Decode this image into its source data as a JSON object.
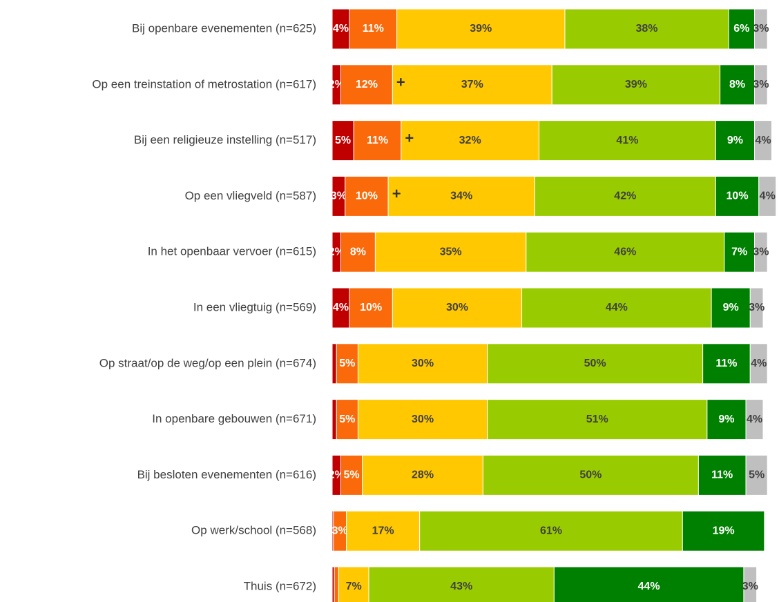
{
  "chart_data": {
    "type": "stacked-barh",
    "categories": [
      "Bij openbare evenementen (n=625)",
      "Op een treinstation of metrostation (n=617)",
      "Bij een religieuze instelling (n=517)",
      "Op een vliegveld (n=587)",
      "In het openbaar vervoer (n=615)",
      "In een vliegtuig (n=569)",
      "Op straat/op de weg/op een plein (n=674)",
      "In openbare gebouwen (n=671)",
      "Bij besloten evenementen (n=616)",
      "Op werk/school (n=568)",
      "Thuis (n=672)"
    ],
    "xlim": [
      0,
      100
    ],
    "series": [
      {
        "color": "#c00000",
        "label_color": "#ffffff",
        "values": [
          4,
          2,
          5,
          3,
          2,
          4,
          1,
          1,
          2,
          0.3,
          0.5
        ],
        "value_labels": [
          "4%",
          "2%",
          "5%",
          "3%",
          "2%",
          "4%",
          null,
          null,
          "2%",
          null,
          null
        ]
      },
      {
        "color": "#fa6a0a",
        "label_color": "#ffffff",
        "values": [
          11,
          12,
          11,
          10,
          8,
          10,
          5,
          5,
          5,
          3,
          1
        ],
        "value_labels": [
          "11%",
          "12%",
          "11%",
          "10%",
          "8%",
          "10%",
          "5%",
          "5%",
          "5%",
          "3%",
          null
        ]
      },
      {
        "color": "#ffc800",
        "label_color": "#404040",
        "values": [
          39,
          37,
          32,
          34,
          35,
          30,
          30,
          30,
          28,
          17,
          7
        ],
        "value_labels": [
          "39%",
          "37%",
          "32%",
          "34%",
          "35%",
          "30%",
          "30%",
          "30%",
          "28%",
          "17%",
          "7%"
        ]
      },
      {
        "color": "#99cc00",
        "label_color": "#404040",
        "values": [
          38,
          39,
          41,
          42,
          46,
          44,
          50,
          51,
          50,
          61,
          43
        ],
        "value_labels": [
          "38%",
          "39%",
          "41%",
          "42%",
          "46%",
          "44%",
          "50%",
          "51%",
          "50%",
          "61%",
          "43%"
        ]
      },
      {
        "color": "#008000",
        "label_color": "#ffffff",
        "values": [
          6,
          8,
          9,
          10,
          7,
          9,
          11,
          9,
          11,
          19,
          44
        ],
        "value_labels": [
          "6%",
          "8%",
          "9%",
          "10%",
          "7%",
          "9%",
          "11%",
          "9%",
          "11%",
          "19%",
          "44%"
        ]
      },
      {
        "color": "#bfbfbf",
        "label_color": "#404040",
        "values": [
          3,
          3,
          4,
          4,
          3,
          3,
          4,
          4,
          5,
          0,
          3
        ],
        "value_labels": [
          "3%",
          "3%",
          "4%",
          "4%",
          "3%",
          "3%",
          "4%",
          "4%",
          "5%",
          null,
          "3%"
        ]
      }
    ],
    "annotations": [
      null,
      "+",
      "+",
      "+",
      null,
      null,
      null,
      null,
      null,
      null,
      null
    ]
  }
}
